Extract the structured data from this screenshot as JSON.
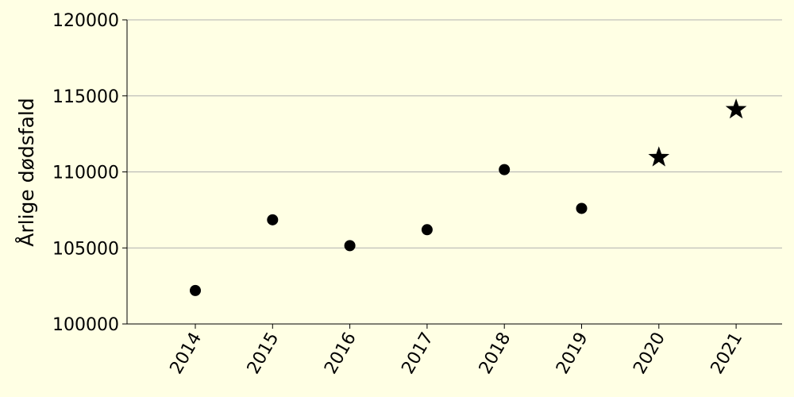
{
  "colors": {
    "background": "#ffffe4",
    "marker": "#000000",
    "grid": "#b0b0b0",
    "axis": "#000000"
  },
  "chart_data": {
    "type": "scatter",
    "title": "",
    "xlabel": "",
    "ylabel": "Årlige dødsfald",
    "x": [
      2014,
      2015,
      2016,
      2017,
      2018,
      2019,
      2020,
      2021
    ],
    "x_tick_labels": [
      "2014",
      "2015",
      "2016",
      "2017",
      "2018",
      "2019",
      "2020",
      "2021"
    ],
    "ylim": [
      100000,
      120000
    ],
    "y_ticks": [
      100000,
      105000,
      110000,
      115000,
      120000
    ],
    "y_tick_labels": [
      "100000",
      "105000",
      "110000",
      "115000",
      "120000"
    ],
    "grid": "horizontal",
    "series": [
      {
        "marker": "circle",
        "points": [
          {
            "x": 2014,
            "y": 102200
          },
          {
            "x": 2015,
            "y": 106850
          },
          {
            "x": 2016,
            "y": 105150
          },
          {
            "x": 2017,
            "y": 106200
          },
          {
            "x": 2018,
            "y": 110150
          },
          {
            "x": 2019,
            "y": 107600
          }
        ]
      },
      {
        "marker": "star",
        "points": [
          {
            "x": 2020,
            "y": 110950
          },
          {
            "x": 2021,
            "y": 114100
          }
        ]
      }
    ]
  }
}
